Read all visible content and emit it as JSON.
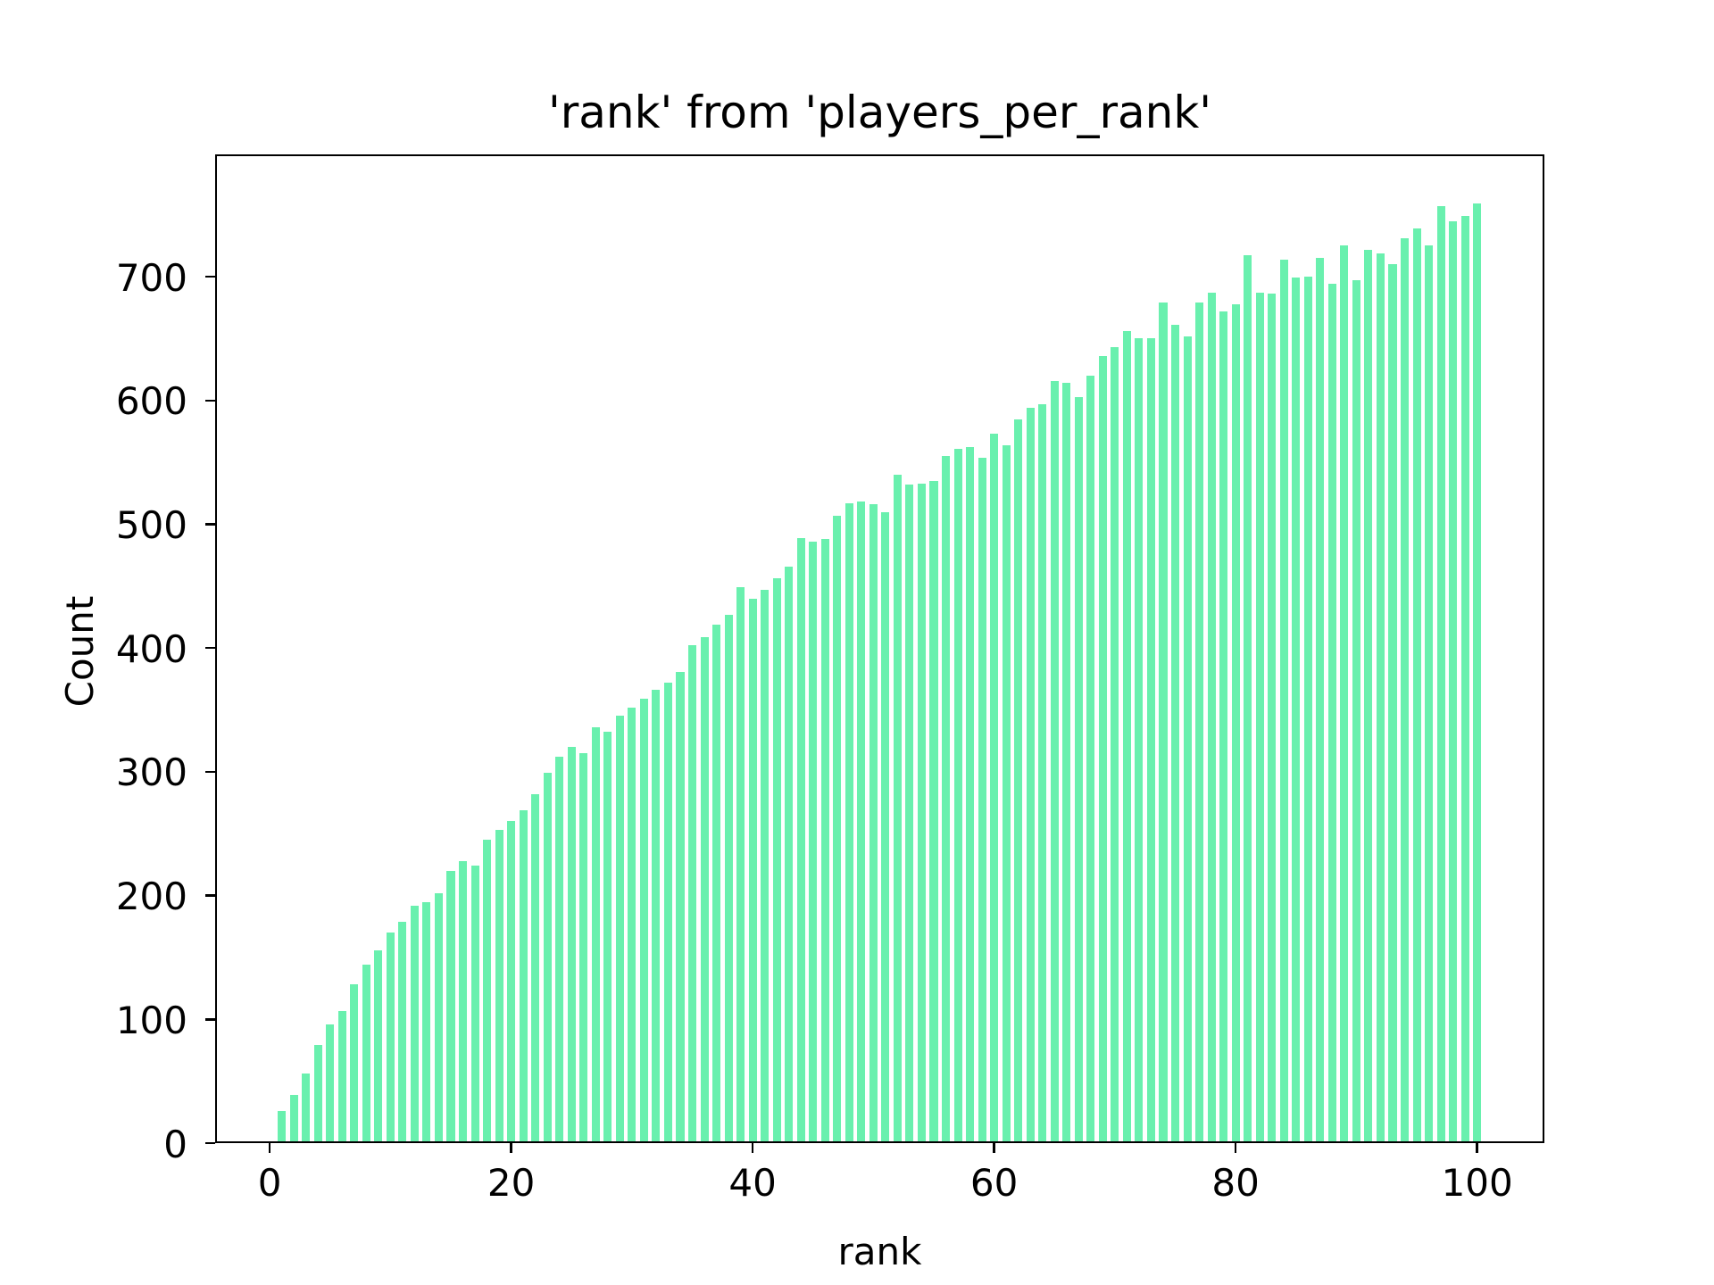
{
  "chart_data": {
    "type": "bar",
    "title": "'rank' from 'players_per_rank'",
    "xlabel": "rank",
    "ylabel": "Count",
    "bar_color": "#69F0AE",
    "background_color": "#FFFFFF",
    "grid": false,
    "legend": false,
    "bar_width": 0.67,
    "xlim": [
      -4.52,
      105.57
    ],
    "ylim": [
      0,
      798.8
    ],
    "xticks": [
      0,
      20,
      40,
      60,
      80,
      100
    ],
    "yticks": [
      0,
      100,
      200,
      300,
      400,
      500,
      600,
      700
    ],
    "x": [
      1,
      2,
      3,
      4,
      5,
      6,
      7,
      8,
      9,
      10,
      11,
      12,
      13,
      14,
      15,
      16,
      17,
      18,
      19,
      20,
      21,
      22,
      23,
      24,
      25,
      26,
      27,
      28,
      29,
      30,
      31,
      32,
      33,
      34,
      35,
      36,
      37,
      38,
      39,
      40,
      41,
      42,
      43,
      44,
      45,
      46,
      47,
      48,
      49,
      50,
      51,
      52,
      53,
      54,
      55,
      56,
      57,
      58,
      59,
      60,
      61,
      62,
      63,
      64,
      65,
      66,
      67,
      68,
      69,
      70,
      71,
      72,
      73,
      74,
      75,
      76,
      77,
      78,
      79,
      80,
      81,
      82,
      83,
      84,
      85,
      86,
      87,
      88,
      89,
      90,
      91,
      92,
      93,
      94,
      95,
      96,
      97,
      98,
      99,
      100
    ],
    "values": [
      26,
      39,
      56,
      79,
      96,
      107,
      128,
      144,
      156,
      170,
      179,
      192,
      195,
      202,
      220,
      228,
      224,
      245,
      253,
      260,
      269,
      282,
      299,
      312,
      320,
      315,
      336,
      332,
      345,
      352,
      359,
      366,
      372,
      381,
      402,
      409,
      419,
      427,
      449,
      440,
      447,
      456,
      466,
      489,
      486,
      488,
      507,
      517,
      518,
      516,
      510,
      540,
      532,
      533,
      535,
      555,
      561,
      562,
      554,
      573,
      564,
      585,
      594,
      597,
      616,
      614,
      603,
      620,
      636,
      643,
      656,
      650,
      650,
      679,
      661,
      652,
      679,
      687,
      672,
      678,
      717,
      687,
      686,
      714,
      699,
      700,
      715,
      694,
      725,
      697,
      722,
      719,
      710,
      731,
      739,
      725,
      757,
      745,
      749,
      759
    ]
  }
}
